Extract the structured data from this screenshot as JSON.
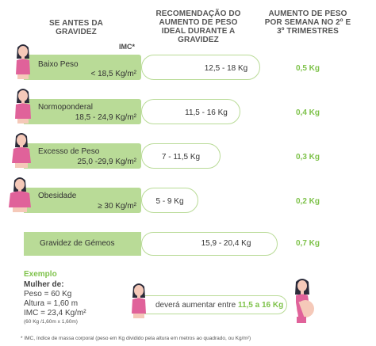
{
  "header": {
    "col1": "SE ANTES DA GRAVIDEZ",
    "col2": "RECOMENDAÇÃO DO AUMENTO DE PESO IDEAL DURANTE A GRAVIDEZ",
    "col3": "AUMENTO DE PESO POR SEMANA NO 2º E 3º TRIMESTRES"
  },
  "imc_label": "IMC*",
  "rows": [
    {
      "category": "Baixo Peso",
      "bmi": "< 18,5 Kg/m²",
      "range": "12,5 - 18 Kg",
      "weekly": "0,5 Kg"
    },
    {
      "category": "Normoponderal",
      "bmi": "18,5 - 24,9 Kg/m²",
      "range": "11,5 - 16 Kg",
      "weekly": "0,4 Kg"
    },
    {
      "category": "Excesso de Peso",
      "bmi": "25,0 -29,9 Kg/m²",
      "range": "7 - 11,5 Kg",
      "weekly": "0,3 Kg"
    },
    {
      "category": "Obesidade",
      "bmi": "≥ 30 Kg/m²",
      "range": "5 - 9 Kg",
      "weekly": "0,2 Kg"
    }
  ],
  "twins": {
    "label": "Gravidez de Gémeos",
    "range": "15,9 - 20,4 Kg",
    "weekly": "0,7 Kg"
  },
  "example": {
    "title": "Exemplo",
    "heading": "Mulher de:",
    "weight": "Peso = 60 Kg",
    "height": "Altura = 1,60 m",
    "imc": "IMC = 23,4 Kg/m²",
    "calc": "(60 Kg /1,60m x 1,60m)",
    "result_prefix": "deverá aumentar entre ",
    "result_range": "11,5 a 16 Kg"
  },
  "footnote": "* IMC, índice de massa corporal (peso em Kg dividido pela altura em metros ao quadrado, ou Kg/m²)",
  "colors": {
    "accent_green": "#7ec24a",
    "light_green": "#b9db97",
    "skin": "#f5c9b9",
    "shirt": "#e0629a",
    "hair": "#2b2b3a"
  }
}
